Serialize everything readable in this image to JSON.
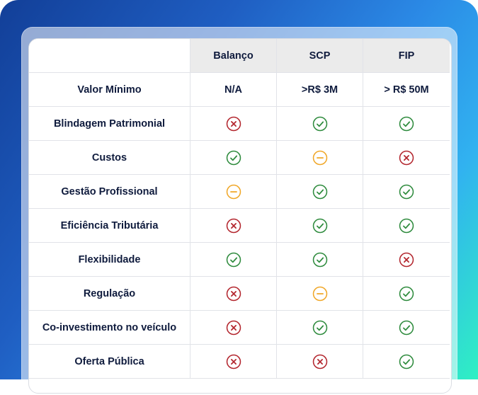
{
  "table": {
    "columns": [
      "Balanço",
      "SCP",
      "FIP"
    ],
    "rows": [
      {
        "label": "Valor Mínimo",
        "values": [
          "N/A",
          ">R$ 3M",
          "> R$ 50M"
        ]
      },
      {
        "label": "Blindagem Patrimonial",
        "status": [
          "no",
          "yes",
          "yes"
        ]
      },
      {
        "label": "Custos",
        "status": [
          "yes",
          "partial",
          "no"
        ]
      },
      {
        "label": "Gestão Profissional",
        "status": [
          "partial",
          "yes",
          "yes"
        ]
      },
      {
        "label": "Eficiência Tributária",
        "status": [
          "no",
          "yes",
          "yes"
        ]
      },
      {
        "label": "Flexibilidade",
        "status": [
          "yes",
          "yes",
          "no"
        ]
      },
      {
        "label": "Regulação",
        "status": [
          "no",
          "partial",
          "yes"
        ]
      },
      {
        "label": "Co-investimento no veículo",
        "status": [
          "no",
          "yes",
          "yes"
        ]
      },
      {
        "label": "Oferta Pública",
        "status": [
          "no",
          "no",
          "yes"
        ]
      }
    ]
  },
  "icons": {
    "yes": {
      "name": "check-circle-icon",
      "color": "#2e8b3d"
    },
    "no": {
      "name": "x-circle-icon",
      "color": "#b3262e"
    },
    "partial": {
      "name": "minus-circle-icon",
      "color": "#f0a728"
    }
  }
}
